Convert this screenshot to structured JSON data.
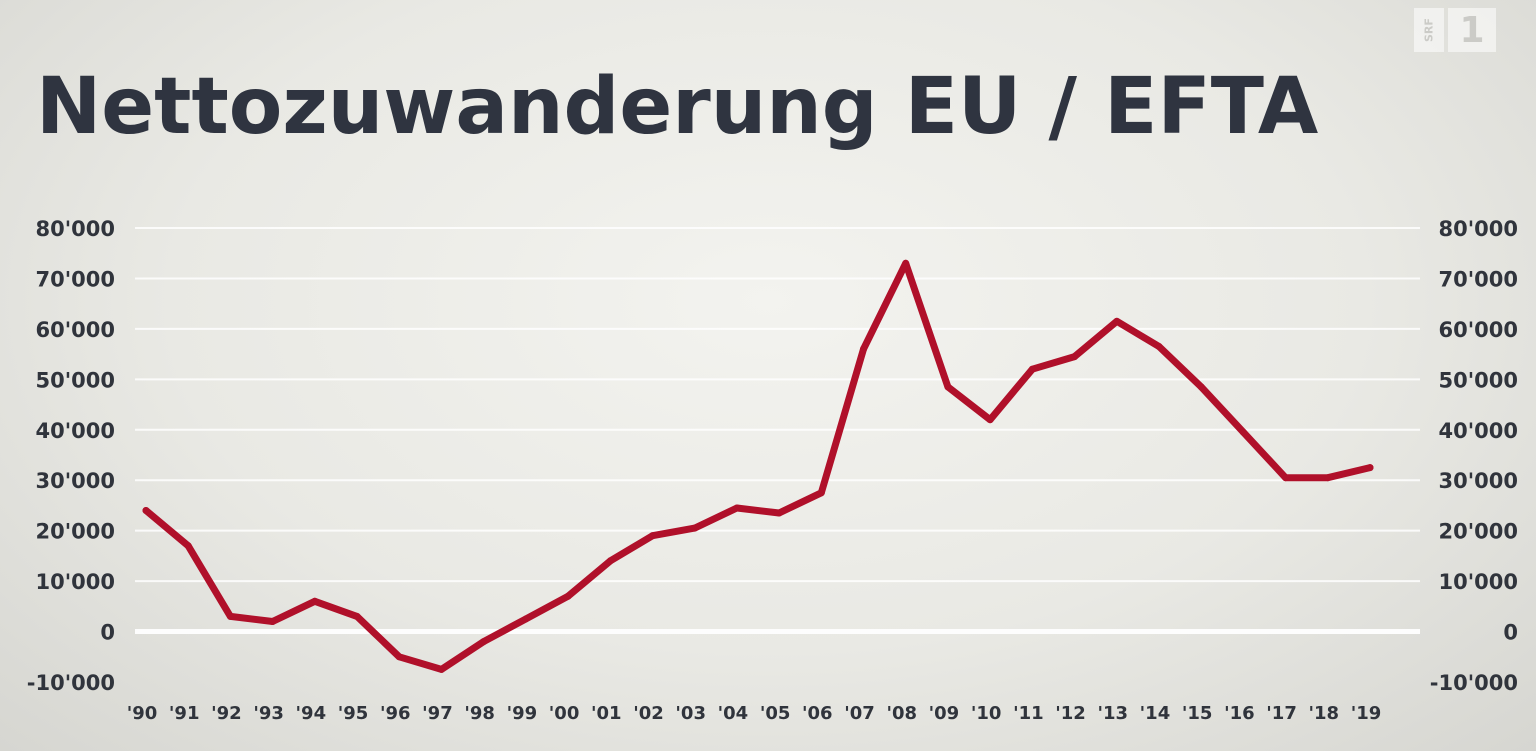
{
  "title": "Nettozuwanderung EU / EFTA",
  "logo": {
    "srf": "SRF",
    "channel": "1"
  },
  "colors": {
    "line": "#b0102a",
    "grid": "#ffffff",
    "text": "#30343c"
  },
  "chart_data": {
    "type": "line",
    "title": "Nettozuwanderung EU / EFTA",
    "xlabel": "",
    "ylabel": "",
    "ylim": [
      -10000,
      80000
    ],
    "grid": true,
    "y_ticks": [
      {
        "value": 80000,
        "label": "80'000"
      },
      {
        "value": 70000,
        "label": "70'000"
      },
      {
        "value": 60000,
        "label": "60'000"
      },
      {
        "value": 50000,
        "label": "50'000"
      },
      {
        "value": 40000,
        "label": "40'000"
      },
      {
        "value": 30000,
        "label": "30'000"
      },
      {
        "value": 20000,
        "label": "20'000"
      },
      {
        "value": 10000,
        "label": "10'000"
      },
      {
        "value": 0,
        "label": "0"
      },
      {
        "value": -10000,
        "label": "-10'000"
      }
    ],
    "categories": [
      "'90",
      "'91",
      "'92",
      "'93",
      "'94",
      "'95",
      "'96",
      "'97",
      "'98",
      "'99",
      "'00",
      "'01",
      "'02",
      "'03",
      "'04",
      "'05",
      "'06",
      "'07",
      "'08",
      "'09",
      "'10",
      "'11",
      "'12",
      "'13",
      "'14",
      "'15",
      "'16",
      "'17",
      "'18",
      "'19"
    ],
    "series": [
      {
        "values": [
          24000,
          17000,
          3000,
          2000,
          6000,
          3000,
          -5000,
          -7500,
          -2000,
          2500,
          7000,
          14000,
          19000,
          20500,
          24500,
          23500,
          27500,
          56000,
          73000,
          48500,
          42000,
          52000,
          54500,
          61500,
          56500,
          48500,
          39500,
          30500,
          30500,
          32500
        ]
      }
    ]
  }
}
